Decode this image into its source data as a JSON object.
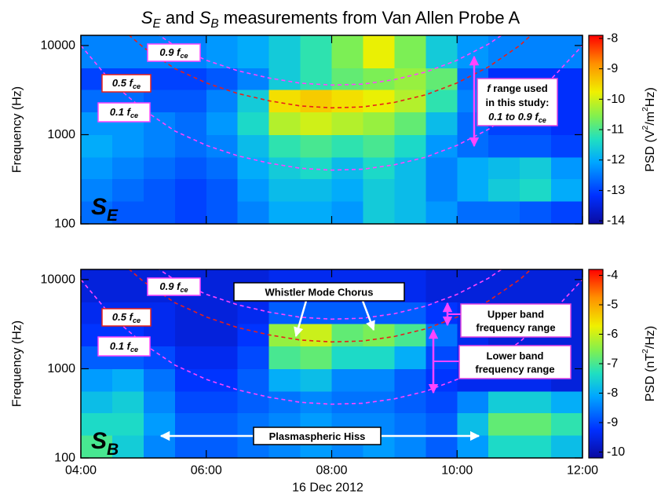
{
  "chart_data": [
    {
      "type": "heatmap",
      "title": [
        {
          "text": "S",
          "italic": true
        },
        {
          "text": "E",
          "sub": true,
          "italic": true
        },
        {
          "text": " and "
        },
        {
          "text": "S",
          "italic": true
        },
        {
          "text": "B",
          "sub": true,
          "italic": true
        },
        {
          "text": " measurements from Van Allen Probe A"
        }
      ],
      "panel_label": [
        {
          "text": "S",
          "italic": true
        },
        {
          "text": "E",
          "sub": true,
          "italic": true
        }
      ],
      "ylabel": "Frequency (Hz)",
      "log_y": true,
      "xlim": [
        4,
        12
      ],
      "xticks": [
        4,
        6,
        8,
        10,
        12
      ],
      "ylim": [
        100,
        13000
      ],
      "yticks": [
        100,
        1000,
        10000
      ],
      "x_bins": [
        4,
        4.5,
        5,
        5.5,
        6,
        6.5,
        7,
        7.5,
        8,
        8.5,
        9,
        9.5,
        10,
        10.5,
        11,
        11.5,
        12
      ],
      "y_bins": [
        100,
        180,
        320,
        560,
        1000,
        1800,
        3200,
        5600,
        13000
      ],
      "z": [
        [
          -12.6,
          -12.8,
          -12.8,
          -13,
          -12.8,
          -12.4,
          -12,
          -12,
          -12.2,
          -11.6,
          -11.8,
          -12.2,
          -12.6,
          -12.6,
          -12.8,
          -13
        ],
        [
          -12.4,
          -12.6,
          -12.8,
          -13,
          -12.8,
          -12.2,
          -11.8,
          -11.8,
          -12,
          -11.6,
          -11.8,
          -12.4,
          -12,
          -11.6,
          -11.4,
          -12
        ],
        [
          -12.2,
          -12.4,
          -12.6,
          -12.8,
          -12.6,
          -12,
          -11.6,
          -11.4,
          -11.8,
          -11.4,
          -11.8,
          -12.4,
          -12,
          -11.8,
          -11.6,
          -12.2
        ],
        [
          -12,
          -12.2,
          -12.4,
          -12.6,
          -12.4,
          -11.8,
          -11.2,
          -11,
          -11.2,
          -11,
          -11.4,
          -12.2,
          -12.6,
          -12.8,
          -12.8,
          -13
        ],
        [
          -12.2,
          -12.2,
          -12.4,
          -12.6,
          -12.2,
          -11.4,
          -10.2,
          -10,
          -10.2,
          -10.4,
          -10.8,
          -11.8,
          -12.6,
          -13,
          -13,
          -13.2
        ],
        [
          -12.6,
          -12.6,
          -12.8,
          -12.8,
          -12.4,
          -11.6,
          -9.6,
          -9.4,
          -9.6,
          -9.8,
          -10.2,
          -11.2,
          -12.4,
          -13,
          -13,
          -13.2
        ],
        [
          -13,
          -13,
          -13,
          -13,
          -12.8,
          -12.4,
          -11.6,
          -11.2,
          -10.8,
          -10.6,
          -10.4,
          -10.8,
          -12.6,
          -13.2,
          -13.2,
          -13.2
        ],
        [
          -12.4,
          -12.4,
          -12.4,
          -12.4,
          -12.2,
          -12,
          -11.6,
          -11.2,
          -10.6,
          -9.8,
          -10.6,
          -11.6,
          -12.2,
          -12.4,
          -12.4,
          -12.4
        ]
      ],
      "clim": [
        -14.1,
        -7.9
      ],
      "cticks": [
        -8,
        -9,
        -10,
        -11,
        -12,
        -13,
        -14
      ],
      "colorbar_label": [
        {
          "text": "PSD (V"
        },
        {
          "text": "2",
          "sup": true
        },
        {
          "text": "/m"
        },
        {
          "text": "2",
          "sup": true
        },
        {
          "text": "Hz)"
        }
      ],
      "curves": [
        {
          "label": [
            {
              "text": "0.1 f"
            },
            {
              "text": "ce",
              "sub": true
            }
          ],
          "color": "#ff44ff",
          "x": [
            4,
            4.5,
            5,
            5.5,
            6,
            6.5,
            7,
            7.5,
            8,
            8.5,
            9,
            9.5,
            10,
            10.5,
            11,
            11.5,
            12
          ],
          "values": [
            10000,
            3800,
            1900,
            1100,
            760,
            580,
            480,
            420,
            400,
            410,
            460,
            560,
            760,
            1150,
            2000,
            4200,
            10000
          ]
        },
        {
          "label": [
            {
              "text": "0.5 f"
            },
            {
              "text": "ce",
              "sub": true
            }
          ],
          "color": "#e8201a",
          "x": [
            4,
            4.5,
            5,
            5.5,
            6,
            6.5,
            7,
            7.5,
            8,
            8.5,
            9,
            9.5,
            10,
            10.5,
            11,
            11.5,
            12
          ],
          "values": [
            50000,
            19000,
            9500,
            5500,
            3800,
            2900,
            2400,
            2100,
            2000,
            2050,
            2300,
            2800,
            3800,
            5750,
            10000,
            21000,
            50000
          ]
        },
        {
          "label": [
            {
              "text": "0.9 f"
            },
            {
              "text": "ce",
              "sub": true
            }
          ],
          "color": "#ff44ff",
          "x": [
            4,
            4.5,
            5,
            5.5,
            6,
            6.5,
            7,
            7.5,
            8,
            8.5,
            9,
            9.5,
            10,
            10.5,
            11,
            11.5,
            12
          ],
          "values": [
            90000,
            34200,
            17100,
            9900,
            6840,
            5220,
            4320,
            3780,
            3600,
            3690,
            4140,
            5040,
            6840,
            10350,
            18000,
            37800,
            90000
          ]
        }
      ],
      "annotations": [
        {
          "lines": [
            [
              {
                "text": "f",
                "italic": true
              },
              {
                "text": " range used"
              }
            ],
            [
              {
                "text": "in this study:"
              }
            ],
            [
              {
                "text": "0.1 to 0.9 f",
                "italic": true
              },
              {
                "text": "ce",
                "sub": true,
                "italic": true
              }
            ]
          ]
        }
      ]
    },
    {
      "type": "heatmap",
      "panel_label": [
        {
          "text": "S",
          "italic": true
        },
        {
          "text": "B",
          "sub": true,
          "italic": true
        }
      ],
      "ylabel": "Frequency (Hz)",
      "xlabel": "16 Dec 2012",
      "log_y": true,
      "xlim": [
        4,
        12
      ],
      "xticks": [
        {
          "value": 4,
          "label": "04:00"
        },
        {
          "value": 6,
          "label": "06:00"
        },
        {
          "value": 8,
          "label": "08:00"
        },
        {
          "value": 10,
          "label": "10:00"
        },
        {
          "value": 12,
          "label": "12:00"
        }
      ],
      "ylim": [
        100,
        13000
      ],
      "yticks": [
        100,
        1000,
        10000
      ],
      "x_bins": [
        4,
        4.5,
        5,
        5.5,
        6,
        6.5,
        7,
        7.5,
        8,
        8.5,
        9,
        9.5,
        10,
        10.5,
        11,
        11.5,
        12
      ],
      "y_bins": [
        100,
        180,
        320,
        560,
        1000,
        1800,
        3200,
        5600,
        13000
      ],
      "z": [
        [
          -7,
          -7.6,
          -8.4,
          -8.8,
          -8.8,
          -8.6,
          -8.4,
          -8.2,
          -8.4,
          -8.2,
          -8.4,
          -8.8,
          -8.2,
          -7.4,
          -7.4,
          -7.8
        ],
        [
          -7.4,
          -7.4,
          -8.2,
          -8.8,
          -8.8,
          -8.6,
          -8.4,
          -8.2,
          -8.4,
          -8.4,
          -8.6,
          -8.8,
          -7.8,
          -6.8,
          -6.8,
          -7.2
        ],
        [
          -7.8,
          -7.6,
          -8.4,
          -9,
          -9,
          -8.8,
          -8.6,
          -8.4,
          -8.6,
          -8.6,
          -8.8,
          -9,
          -8.4,
          -7.6,
          -7.6,
          -8
        ],
        [
          -8.2,
          -8,
          -8.6,
          -9.2,
          -9.2,
          -8.8,
          -8,
          -7.8,
          -8.4,
          -8.4,
          -8.8,
          -9.2,
          -9.4,
          -9.4,
          -9.4,
          -9.6
        ],
        [
          -8.8,
          -8.8,
          -9,
          -9.4,
          -9.4,
          -9,
          -7,
          -6.8,
          -7.4,
          -7.4,
          -8,
          -9,
          -9.4,
          -9.6,
          -9.6,
          -9.6
        ],
        [
          -9.2,
          -9.2,
          -9.4,
          -9.6,
          -9.6,
          -9.2,
          -6.4,
          -6,
          -6.8,
          -6.6,
          -7,
          -8.6,
          -9.4,
          -9.6,
          -9.6,
          -9.6
        ],
        [
          -9.4,
          -9.4,
          -9.4,
          -9.6,
          -9.6,
          -9.4,
          -8.8,
          -8.8,
          -8.8,
          -8.8,
          -8.8,
          -9.2,
          -9.4,
          -9.6,
          -9.6,
          -9.6
        ],
        [
          -9.6,
          -9.6,
          -9.6,
          -9.6,
          -9.6,
          -9.6,
          -9.4,
          -9.4,
          -9.4,
          -9.4,
          -9.4,
          -9.6,
          -9.6,
          -9.6,
          -9.6,
          -9.6
        ]
      ],
      "clim": [
        -10.2,
        -3.8
      ],
      "cticks": [
        -4,
        -5,
        -6,
        -7,
        -8,
        -9,
        -10
      ],
      "colorbar_label": [
        {
          "text": "PSD (nT"
        },
        {
          "text": "2",
          "sup": true
        },
        {
          "text": "/Hz)"
        }
      ],
      "curves": [
        {
          "label": [
            {
              "text": "0.1 f"
            },
            {
              "text": "ce",
              "sub": true
            }
          ],
          "color": "#ff44ff",
          "x": [
            4,
            4.5,
            5,
            5.5,
            6,
            6.5,
            7,
            7.5,
            8,
            8.5,
            9,
            9.5,
            10,
            10.5,
            11,
            11.5,
            12
          ],
          "values": [
            10000,
            3800,
            1900,
            1100,
            760,
            580,
            480,
            420,
            400,
            410,
            460,
            560,
            760,
            1150,
            2000,
            4200,
            10000
          ]
        },
        {
          "label": [
            {
              "text": "0.5 f"
            },
            {
              "text": "ce",
              "sub": true
            }
          ],
          "color": "#e8201a",
          "x": [
            4,
            4.5,
            5,
            5.5,
            6,
            6.5,
            7,
            7.5,
            8,
            8.5,
            9,
            9.5,
            10,
            10.5,
            11,
            11.5,
            12
          ],
          "values": [
            50000,
            19000,
            9500,
            5500,
            3800,
            2900,
            2400,
            2100,
            2000,
            2050,
            2300,
            2800,
            3800,
            5750,
            10000,
            21000,
            50000
          ]
        },
        {
          "label": [
            {
              "text": "0.9 f"
            },
            {
              "text": "ce",
              "sub": true
            }
          ],
          "color": "#ff44ff",
          "x": [
            4,
            4.5,
            5,
            5.5,
            6,
            6.5,
            7,
            7.5,
            8,
            8.5,
            9,
            9.5,
            10,
            10.5,
            11,
            11.5,
            12
          ],
          "values": [
            90000,
            34200,
            17100,
            9900,
            6840,
            5220,
            4320,
            3780,
            3600,
            3690,
            4140,
            5040,
            6840,
            10350,
            18000,
            37800,
            90000
          ]
        }
      ],
      "annotations": [
        {
          "lines": [
            [
              {
                "text": "Whistler Mode Chorus"
              }
            ]
          ]
        },
        {
          "lines": [
            [
              {
                "text": "Upper band"
              }
            ],
            [
              {
                "text": "frequency range"
              }
            ]
          ]
        },
        {
          "lines": [
            [
              {
                "text": "Lower band"
              }
            ],
            [
              {
                "text": "frequency range"
              }
            ]
          ]
        },
        {
          "lines": [
            [
              {
                "text": "Plasmaspheric Hiss"
              }
            ]
          ]
        }
      ]
    }
  ]
}
